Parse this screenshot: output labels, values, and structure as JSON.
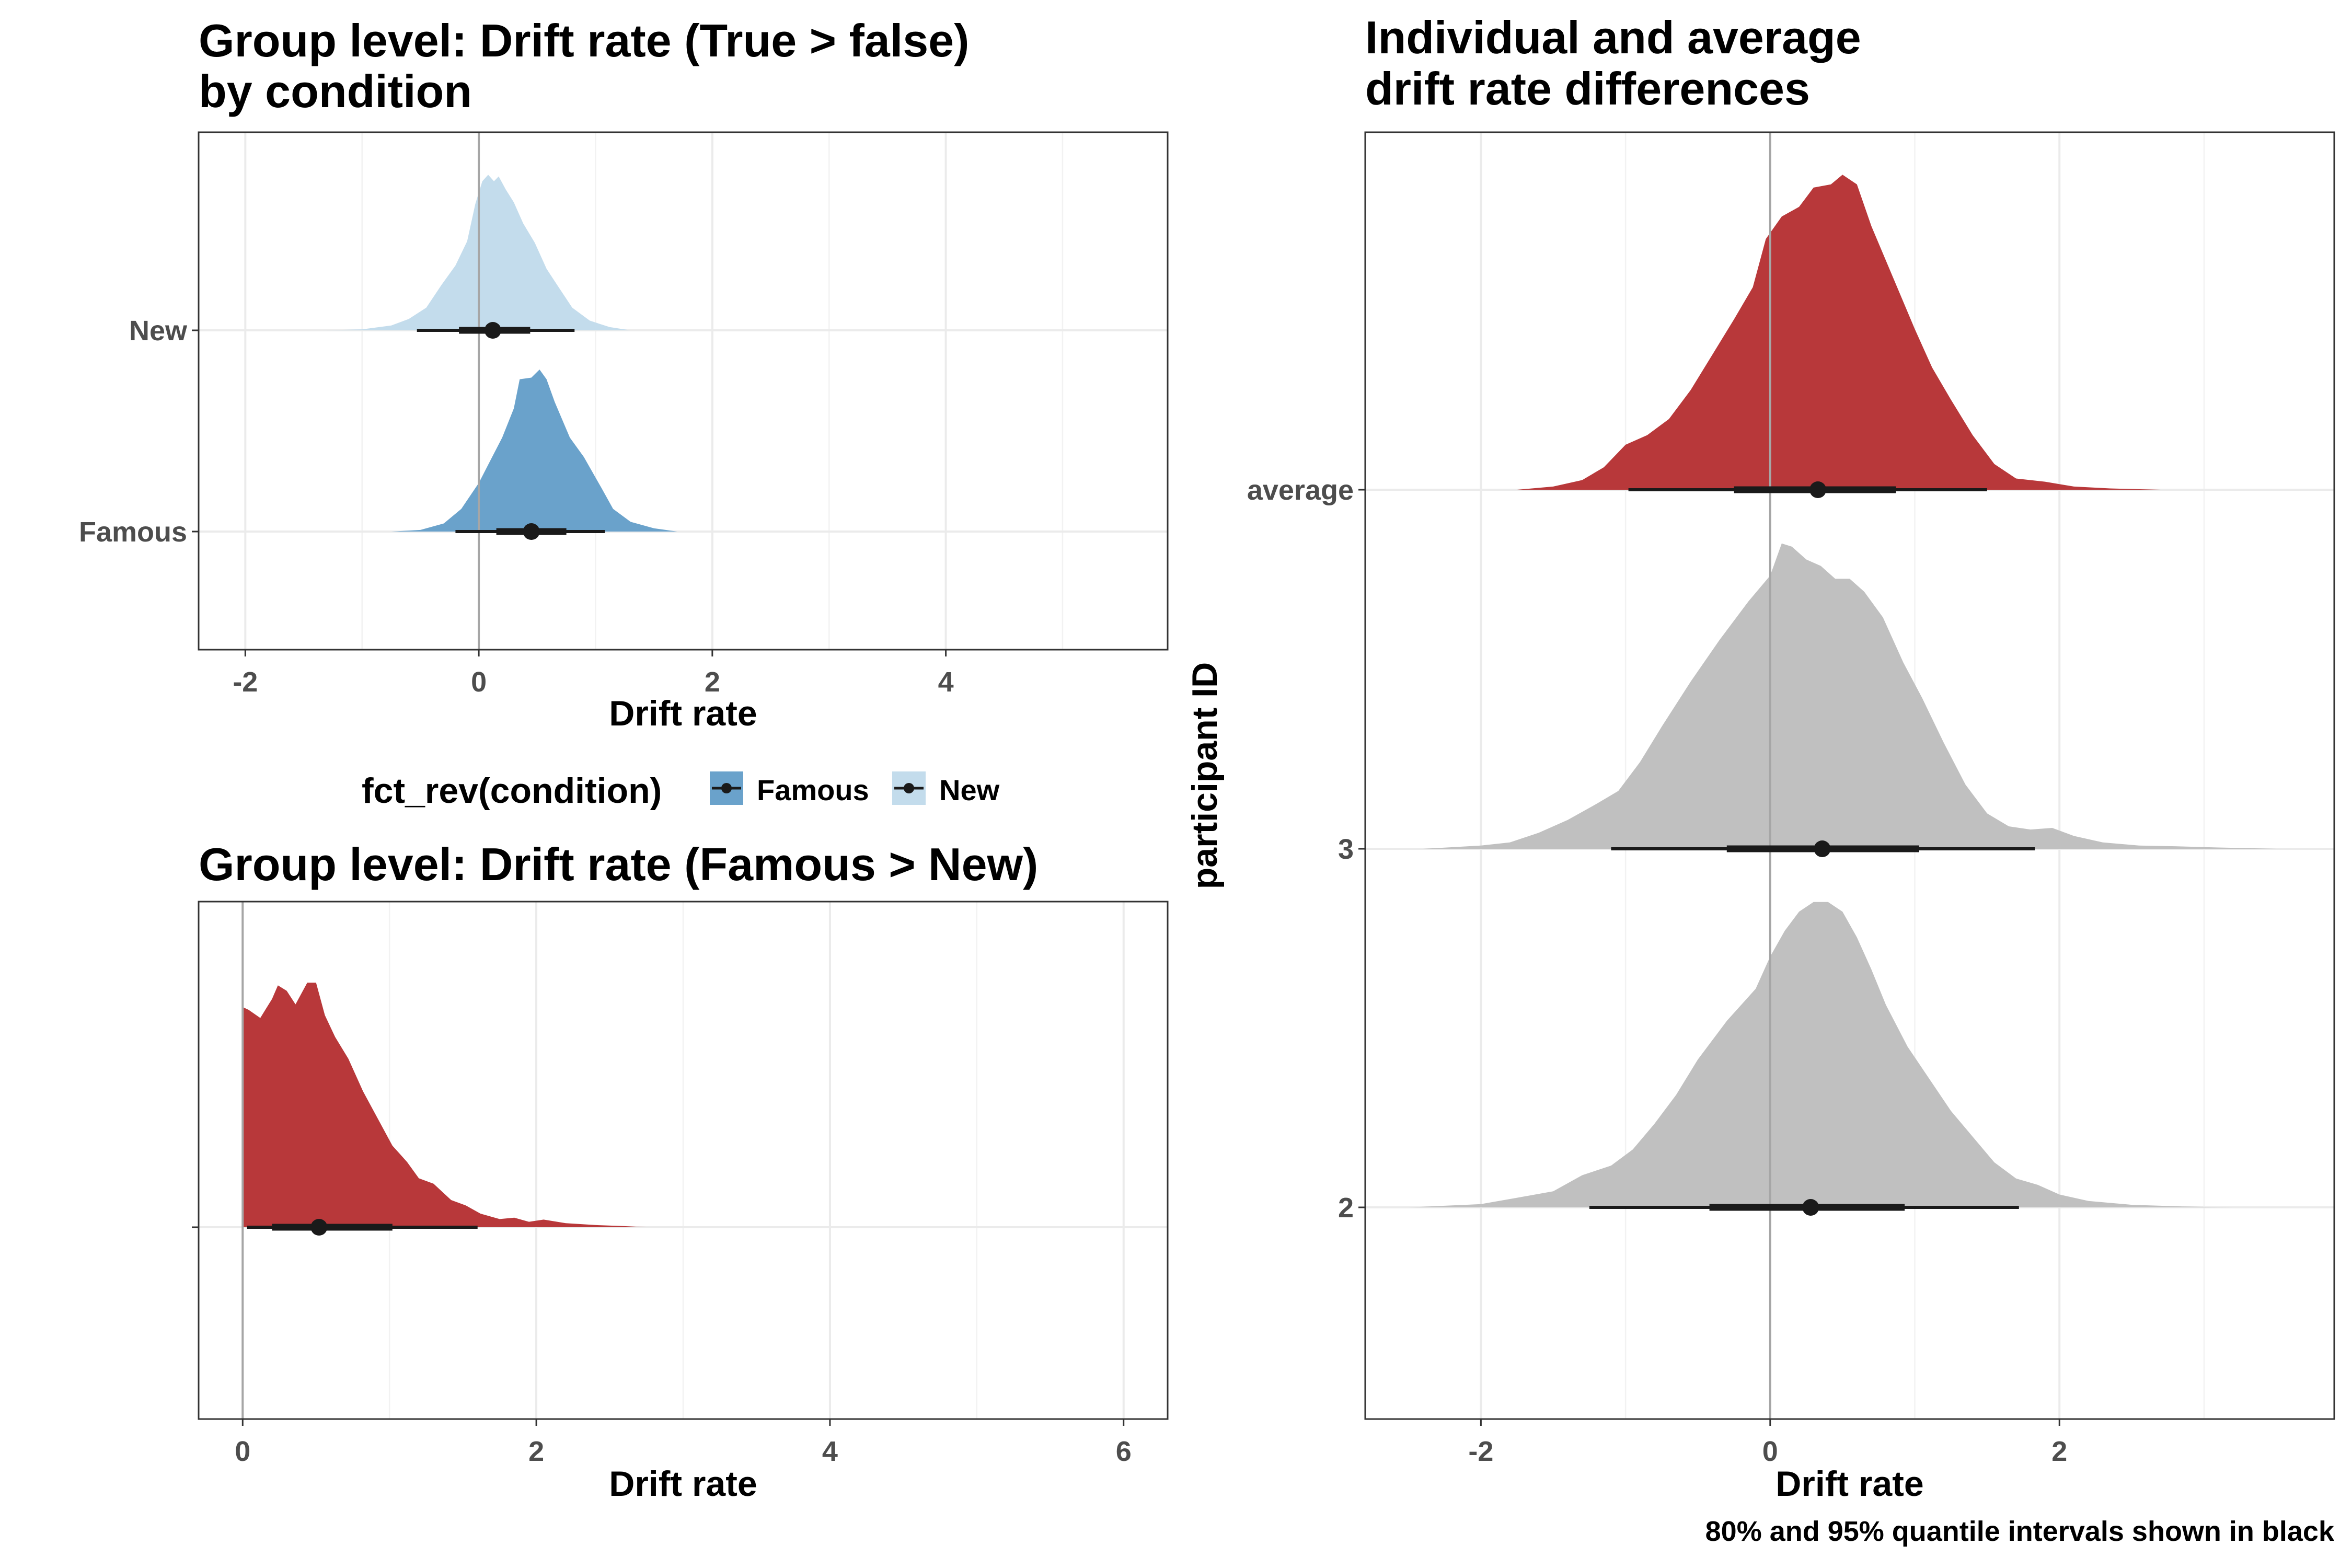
{
  "caption": "80% and 95% quantile intervals shown in black",
  "colors": {
    "famous": "#6aa2cb",
    "new": "#c3dcec",
    "difference": "#b8383a",
    "participant": "#c0c0c0",
    "interval": "#1a1a1a"
  },
  "legend": {
    "title": "fct_rev(condition)",
    "items": [
      {
        "label": "Famous",
        "color": "#6aa2cb"
      },
      {
        "label": "New",
        "color": "#c3dcec"
      }
    ]
  },
  "chart_data": [
    {
      "id": "condition",
      "type": "density",
      "title_lines": [
        "Group level: Drift rate (True > false)",
        "by condition"
      ],
      "xlabel": "Drift rate",
      "ylabel": "",
      "xlim": [
        -2.4,
        5.9
      ],
      "xticks": [
        -2,
        0,
        2,
        4
      ],
      "zero_line": 0,
      "grid": true,
      "legend_position": "bottom",
      "categories": [
        "New",
        "Famous"
      ],
      "series": [
        {
          "name": "New",
          "color": "#c3dcec",
          "points": [
            [
              -1.35,
              0
            ],
            [
              -1.0,
              0.006
            ],
            [
              -0.75,
              0.03
            ],
            [
              -0.6,
              0.07
            ],
            [
              -0.45,
              0.14
            ],
            [
              -0.32,
              0.28
            ],
            [
              -0.2,
              0.4
            ],
            [
              -0.1,
              0.55
            ],
            [
              -0.03,
              0.78
            ],
            [
              0.03,
              0.92
            ],
            [
              0.08,
              0.96
            ],
            [
              0.13,
              0.92
            ],
            [
              0.17,
              0.95
            ],
            [
              0.23,
              0.87
            ],
            [
              0.3,
              0.79
            ],
            [
              0.38,
              0.66
            ],
            [
              0.48,
              0.54
            ],
            [
              0.58,
              0.38
            ],
            [
              0.68,
              0.27
            ],
            [
              0.8,
              0.14
            ],
            [
              0.95,
              0.06
            ],
            [
              1.12,
              0.02
            ],
            [
              1.3,
              0
            ]
          ],
          "median": 0.12,
          "interval_80": [
            -0.17,
            0.44
          ],
          "interval_95": [
            -0.53,
            0.82
          ]
        },
        {
          "name": "Famous",
          "color": "#6aa2cb",
          "points": [
            [
              -0.75,
              0
            ],
            [
              -0.5,
              0.01
            ],
            [
              -0.3,
              0.05
            ],
            [
              -0.15,
              0.14
            ],
            [
              0.0,
              0.3
            ],
            [
              0.1,
              0.44
            ],
            [
              0.2,
              0.58
            ],
            [
              0.3,
              0.76
            ],
            [
              0.35,
              0.94
            ],
            [
              0.45,
              0.95
            ],
            [
              0.52,
              1.0
            ],
            [
              0.58,
              0.94
            ],
            [
              0.65,
              0.8
            ],
            [
              0.78,
              0.58
            ],
            [
              0.9,
              0.46
            ],
            [
              1.05,
              0.27
            ],
            [
              1.15,
              0.14
            ],
            [
              1.3,
              0.06
            ],
            [
              1.5,
              0.02
            ],
            [
              1.7,
              0
            ]
          ],
          "median": 0.45,
          "interval_80": [
            0.15,
            0.75
          ],
          "interval_95": [
            -0.2,
            1.08
          ]
        }
      ]
    },
    {
      "id": "difference",
      "type": "density",
      "title_lines": [
        "Group level: Drift rate (Famous > New)"
      ],
      "xlabel": "Drift rate",
      "ylabel": "",
      "xlim": [
        -0.3,
        6.3
      ],
      "xticks": [
        0,
        2,
        4,
        6
      ],
      "zero_line": 0,
      "grid": true,
      "series": [
        {
          "name": "",
          "color": "#b8383a",
          "points": [
            [
              0.0,
              0
            ],
            [
              0.0,
              0.81
            ],
            [
              0.04,
              0.8
            ],
            [
              0.12,
              0.77
            ],
            [
              0.2,
              0.84
            ],
            [
              0.24,
              0.89
            ],
            [
              0.3,
              0.87
            ],
            [
              0.36,
              0.82
            ],
            [
              0.44,
              0.9
            ],
            [
              0.5,
              0.9
            ],
            [
              0.56,
              0.78
            ],
            [
              0.63,
              0.7
            ],
            [
              0.72,
              0.62
            ],
            [
              0.82,
              0.5
            ],
            [
              0.92,
              0.4
            ],
            [
              1.02,
              0.3
            ],
            [
              1.12,
              0.24
            ],
            [
              1.2,
              0.18
            ],
            [
              1.3,
              0.16
            ],
            [
              1.42,
              0.1
            ],
            [
              1.52,
              0.08
            ],
            [
              1.62,
              0.05
            ],
            [
              1.75,
              0.03
            ],
            [
              1.85,
              0.035
            ],
            [
              1.95,
              0.02
            ],
            [
              2.05,
              0.028
            ],
            [
              2.2,
              0.015
            ],
            [
              2.4,
              0.008
            ],
            [
              2.6,
              0.004
            ],
            [
              2.75,
              0
            ]
          ],
          "median": 0.52,
          "interval_80": [
            0.2,
            1.02
          ],
          "interval_95": [
            0.03,
            1.6
          ]
        }
      ]
    },
    {
      "id": "individual",
      "type": "density",
      "title_lines": [
        "Individual and average",
        "drift rate differences"
      ],
      "xlabel": "Drift rate",
      "ylabel": "participant ID",
      "xlim": [
        -2.8,
        3.9
      ],
      "xticks": [
        -2,
        0,
        2
      ],
      "zero_line": 0,
      "grid": true,
      "categories": [
        "average",
        "3",
        "2"
      ],
      "series": [
        {
          "name": "average",
          "color": "#b8383a",
          "points": [
            [
              -1.75,
              0
            ],
            [
              -1.5,
              0.01
            ],
            [
              -1.3,
              0.03
            ],
            [
              -1.15,
              0.07
            ],
            [
              -1.0,
              0.14
            ],
            [
              -0.85,
              0.17
            ],
            [
              -0.7,
              0.22
            ],
            [
              -0.55,
              0.31
            ],
            [
              -0.4,
              0.42
            ],
            [
              -0.25,
              0.53
            ],
            [
              -0.12,
              0.63
            ],
            [
              -0.03,
              0.78
            ],
            [
              0.08,
              0.85
            ],
            [
              0.2,
              0.88
            ],
            [
              0.3,
              0.94
            ],
            [
              0.42,
              0.95
            ],
            [
              0.5,
              0.98
            ],
            [
              0.6,
              0.95
            ],
            [
              0.7,
              0.82
            ],
            [
              0.85,
              0.66
            ],
            [
              1.0,
              0.5
            ],
            [
              1.12,
              0.38
            ],
            [
              1.25,
              0.28
            ],
            [
              1.4,
              0.17
            ],
            [
              1.55,
              0.08
            ],
            [
              1.7,
              0.035
            ],
            [
              1.9,
              0.025
            ],
            [
              2.1,
              0.01
            ],
            [
              2.35,
              0.004
            ],
            [
              2.7,
              0
            ]
          ],
          "median": 0.33,
          "interval_80": [
            -0.25,
            0.87
          ],
          "interval_95": [
            -0.98,
            1.5
          ]
        },
        {
          "name": "3",
          "color": "#c0c0c0",
          "points": [
            [
              -2.4,
              0
            ],
            [
              -2.0,
              0.01
            ],
            [
              -1.8,
              0.02
            ],
            [
              -1.6,
              0.05
            ],
            [
              -1.4,
              0.09
            ],
            [
              -1.2,
              0.14
            ],
            [
              -1.05,
              0.18
            ],
            [
              -0.9,
              0.27
            ],
            [
              -0.75,
              0.38
            ],
            [
              -0.55,
              0.52
            ],
            [
              -0.35,
              0.65
            ],
            [
              -0.15,
              0.77
            ],
            [
              0.0,
              0.85
            ],
            [
              0.08,
              0.95
            ],
            [
              0.15,
              0.94
            ],
            [
              0.25,
              0.9
            ],
            [
              0.35,
              0.88
            ],
            [
              0.45,
              0.84
            ],
            [
              0.55,
              0.84
            ],
            [
              0.65,
              0.8
            ],
            [
              0.78,
              0.72
            ],
            [
              0.92,
              0.58
            ],
            [
              1.05,
              0.47
            ],
            [
              1.2,
              0.33
            ],
            [
              1.35,
              0.2
            ],
            [
              1.5,
              0.11
            ],
            [
              1.65,
              0.07
            ],
            [
              1.8,
              0.06
            ],
            [
              1.95,
              0.065
            ],
            [
              2.1,
              0.04
            ],
            [
              2.3,
              0.02
            ],
            [
              2.55,
              0.01
            ],
            [
              2.8,
              0.008
            ],
            [
              3.1,
              0.004
            ],
            [
              3.5,
              0
            ]
          ],
          "median": 0.36,
          "interval_80": [
            -0.3,
            1.03
          ],
          "interval_95": [
            -1.1,
            1.83
          ]
        },
        {
          "name": "2",
          "color": "#c0c0c0",
          "points": [
            [
              -2.5,
              0
            ],
            [
              -2.0,
              0.01
            ],
            [
              -1.75,
              0.03
            ],
            [
              -1.5,
              0.05
            ],
            [
              -1.3,
              0.1
            ],
            [
              -1.1,
              0.13
            ],
            [
              -0.95,
              0.18
            ],
            [
              -0.8,
              0.26
            ],
            [
              -0.65,
              0.35
            ],
            [
              -0.5,
              0.46
            ],
            [
              -0.3,
              0.58
            ],
            [
              -0.1,
              0.68
            ],
            [
              0.0,
              0.78
            ],
            [
              0.1,
              0.86
            ],
            [
              0.2,
              0.92
            ],
            [
              0.3,
              0.95
            ],
            [
              0.4,
              0.95
            ],
            [
              0.5,
              0.92
            ],
            [
              0.6,
              0.84
            ],
            [
              0.7,
              0.74
            ],
            [
              0.8,
              0.63
            ],
            [
              0.95,
              0.5
            ],
            [
              1.1,
              0.4
            ],
            [
              1.25,
              0.3
            ],
            [
              1.4,
              0.22
            ],
            [
              1.55,
              0.14
            ],
            [
              1.7,
              0.09
            ],
            [
              1.85,
              0.07
            ],
            [
              2.0,
              0.04
            ],
            [
              2.2,
              0.02
            ],
            [
              2.5,
              0.008
            ],
            [
              2.85,
              0.003
            ],
            [
              3.2,
              0
            ]
          ],
          "median": 0.28,
          "interval_80": [
            -0.42,
            0.93
          ],
          "interval_95": [
            -1.25,
            1.72
          ]
        }
      ]
    }
  ]
}
